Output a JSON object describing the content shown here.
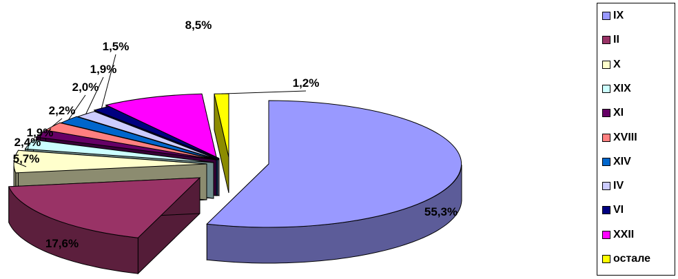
{
  "chart_data": {
    "type": "pie",
    "three_d": true,
    "exploded": true,
    "legend_position": "right",
    "slices": [
      {
        "name": "IX",
        "label": "55,3%",
        "value": 55.3,
        "color": "#9999FF"
      },
      {
        "name": "II",
        "label": "17,6%",
        "value": 17.6,
        "color": "#993366"
      },
      {
        "name": "X",
        "label": "5,7%",
        "value": 5.7,
        "color": "#FFFFCC"
      },
      {
        "name": "XIX",
        "label": "2,4%",
        "value": 2.4,
        "color": "#CCFFFF"
      },
      {
        "name": "XI",
        "label": "1,9%",
        "value": 1.9,
        "color": "#660066"
      },
      {
        "name": "XVIII",
        "label": "2,2%",
        "value": 2.2,
        "color": "#FF8080"
      },
      {
        "name": "XIV",
        "label": "2,0%",
        "value": 2.0,
        "color": "#0066CC"
      },
      {
        "name": "IV",
        "label": "1,9%",
        "value": 1.9,
        "color": "#CCCCFF"
      },
      {
        "name": "VI",
        "label": "1,5%",
        "value": 1.5,
        "color": "#000080"
      },
      {
        "name": "XXII",
        "label": "8,5%",
        "value": 8.5,
        "color": "#FF00FF"
      },
      {
        "name": "остале",
        "label": "1,2%",
        "value": 1.2,
        "color": "#FFFF00"
      }
    ]
  }
}
